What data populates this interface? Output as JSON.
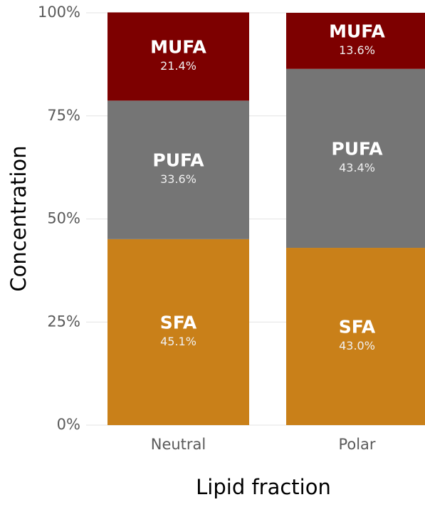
{
  "chart_data": {
    "type": "stacked-bar",
    "xlabel": "Lipid fraction",
    "ylabel": "Concentration",
    "categories": [
      "Neutral",
      "Polar"
    ],
    "series": [
      {
        "name": "SFA",
        "color": "#c98019",
        "values": [
          45.1,
          43.0
        ],
        "value_labels": [
          "45.1%",
          "43.0%"
        ]
      },
      {
        "name": "PUFA",
        "color": "#757575",
        "values": [
          33.6,
          43.4
        ],
        "value_labels": [
          "33.6%",
          "43.4%"
        ]
      },
      {
        "name": "MUFA",
        "color": "#7d0000",
        "values": [
          21.4,
          13.6
        ],
        "value_labels": [
          "21.4%",
          "13.6%"
        ]
      }
    ],
    "ylim": [
      0,
      100
    ],
    "yticks": [
      {
        "value": 0,
        "label": "0%"
      },
      {
        "value": 25,
        "label": "25%"
      },
      {
        "value": 50,
        "label": "50%"
      },
      {
        "value": 75,
        "label": "75%"
      },
      {
        "value": 100,
        "label": "100%"
      }
    ],
    "grid": true
  }
}
